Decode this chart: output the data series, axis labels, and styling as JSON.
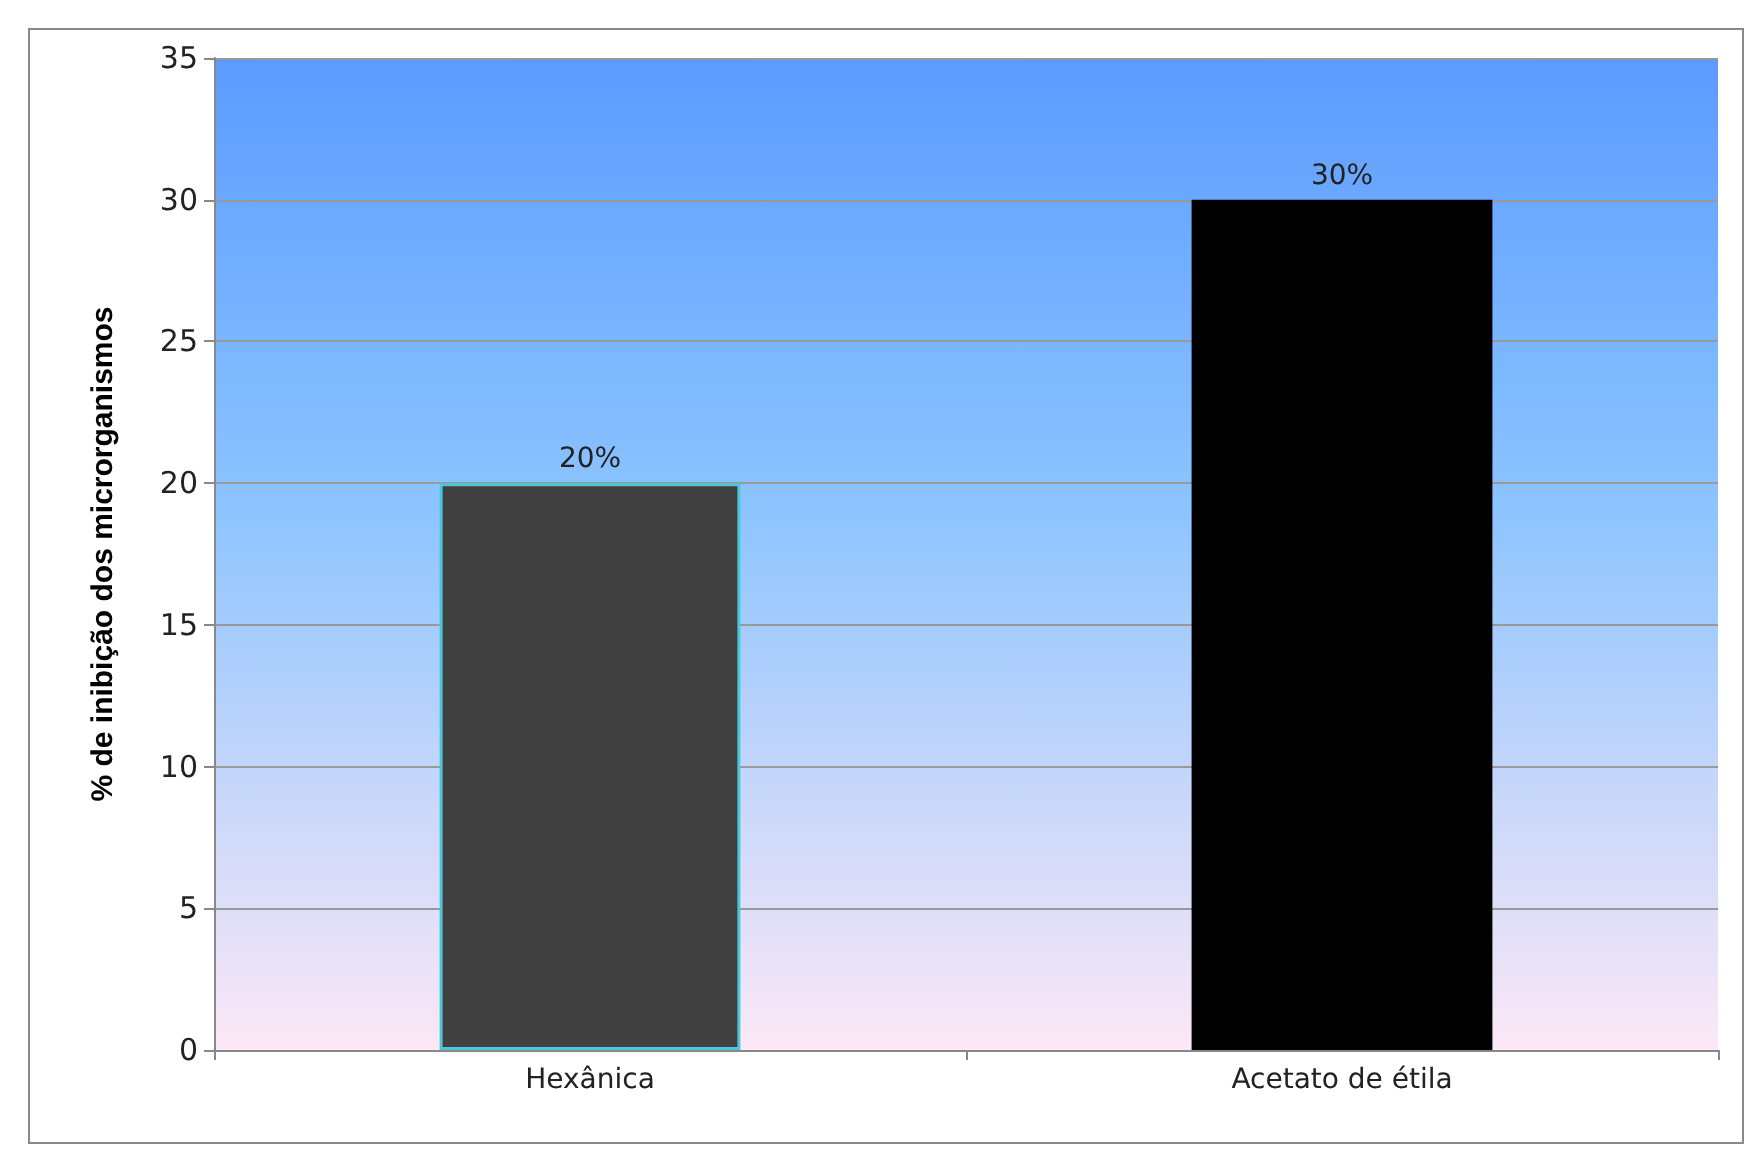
{
  "chart_data": {
    "type": "bar",
    "ylabel": "% de inibição dos microrganismos",
    "categories": [
      "Hexânica",
      "Acetato de étila"
    ],
    "values": [
      20,
      30
    ],
    "colors": [
      "#404040",
      "#000000"
    ],
    "value_labels": [
      "20%",
      "30%"
    ],
    "ylim": [
      0,
      35
    ],
    "yticks": [
      0,
      5,
      10,
      15,
      20,
      25,
      30,
      35
    ],
    "grid": "y"
  }
}
